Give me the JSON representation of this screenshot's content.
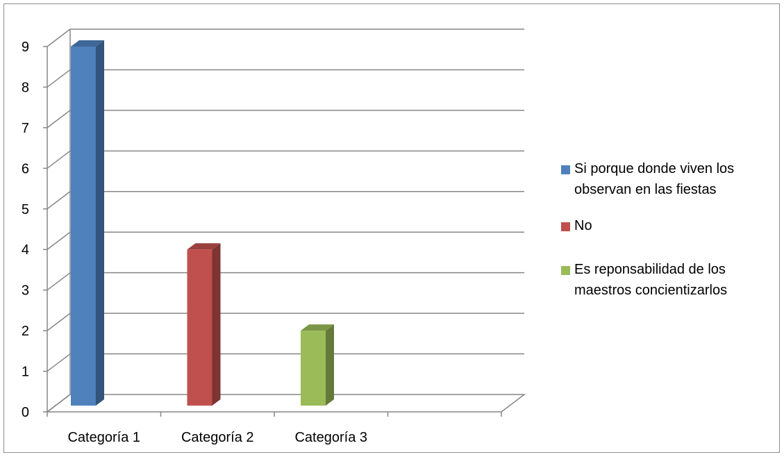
{
  "chart_data": {
    "type": "bar",
    "style": "3d-column",
    "categories": [
      "Categoría 1",
      "Categoría 2",
      "Categoría 3"
    ],
    "series": [
      {
        "name": "Si porque  donde viven los observan en las fiestas",
        "color": "#4F81BD",
        "values": [
          9,
          null,
          null
        ]
      },
      {
        "name": "No",
        "color": "#C0504D",
        "values": [
          null,
          4,
          null
        ]
      },
      {
        "name": "Es reponsabilidad de los maestros concientizarlos",
        "color": "#9BBB59",
        "values": [
          null,
          null,
          2
        ]
      }
    ],
    "y_ticks": [
      "0",
      "1",
      "2",
      "3",
      "4",
      "5",
      "6",
      "7",
      "8",
      "9"
    ],
    "ylim": [
      0,
      9
    ],
    "grid": true,
    "legend_position": "right"
  }
}
